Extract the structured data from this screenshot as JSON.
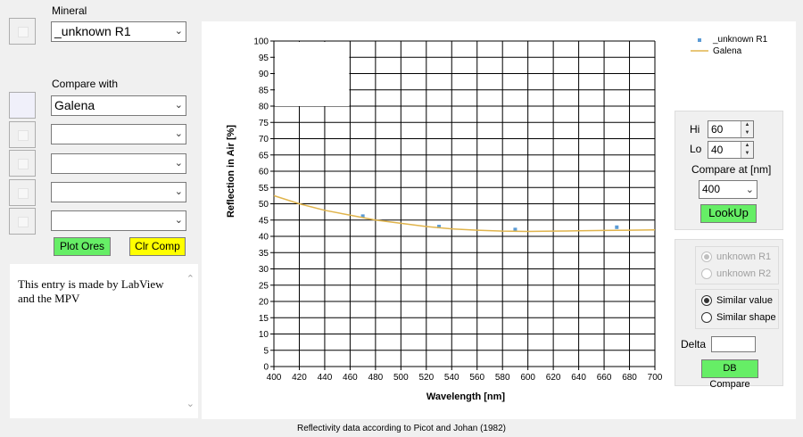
{
  "left": {
    "mineral_label": "Mineral",
    "mineral_value": "_unknown R1",
    "compare_label": "Compare with",
    "compare_values": [
      "Galena",
      "",
      "",
      "",
      ""
    ],
    "plot_ores_label": "Plot Ores",
    "clr_comp_label": "Clr Comp",
    "note_text": "This entry is made by LabView and the MPV"
  },
  "right": {
    "hi_label": "Hi",
    "hi_value": "60",
    "lo_label": "Lo",
    "lo_value": "40",
    "compare_at_label": "Compare at [nm]",
    "compare_at_value": "400",
    "lookup_label": "LookUp",
    "radio_unknown_r1": "unknown R1",
    "radio_unknown_r2": "unknown R2",
    "radio_similar_value": "Similar value",
    "radio_similar_shape": "Similar shape",
    "delta_label": "Delta",
    "delta_value": "",
    "db_compare_label": "DB Compare"
  },
  "footer": "Reflectivity data according to Picot and Johan (1982)",
  "colors": {
    "plot_ores_btn": "#66ee66",
    "clr_comp_btn": "#ffff00",
    "lookup_btn": "#66ee66",
    "db_compare_btn": "#66ee66",
    "galena_line": "#e0b44c",
    "unknown_marker": "#5b9bd5"
  },
  "chart_data": {
    "type": "line",
    "xlabel": "Wavelength [nm]",
    "ylabel": "Reflection in Air [%]",
    "xlim": [
      400,
      700
    ],
    "ylim": [
      0,
      100
    ],
    "xticks": [
      400,
      420,
      440,
      460,
      480,
      500,
      520,
      540,
      560,
      580,
      600,
      620,
      640,
      660,
      680,
      700
    ],
    "yticks": [
      0,
      5,
      10,
      15,
      20,
      25,
      30,
      35,
      40,
      45,
      50,
      55,
      60,
      65,
      70,
      75,
      80,
      85,
      90,
      95,
      100
    ],
    "grid": true,
    "legend_position": "top-right",
    "series": [
      {
        "name": "_unknown R1",
        "kind": "scatter",
        "x": [
          470,
          530,
          590,
          670
        ],
        "y": [
          46.2,
          43.0,
          42.1,
          42.8
        ]
      },
      {
        "name": "Galena",
        "kind": "line",
        "x": [
          400,
          420,
          440,
          460,
          480,
          500,
          520,
          540,
          560,
          580,
          600,
          620,
          640,
          660,
          680,
          700
        ],
        "y": [
          52.5,
          50.0,
          48.0,
          46.5,
          45.0,
          44.0,
          43.0,
          42.3,
          41.9,
          41.6,
          41.5,
          41.6,
          41.7,
          41.8,
          41.9,
          42.0
        ]
      }
    ]
  }
}
